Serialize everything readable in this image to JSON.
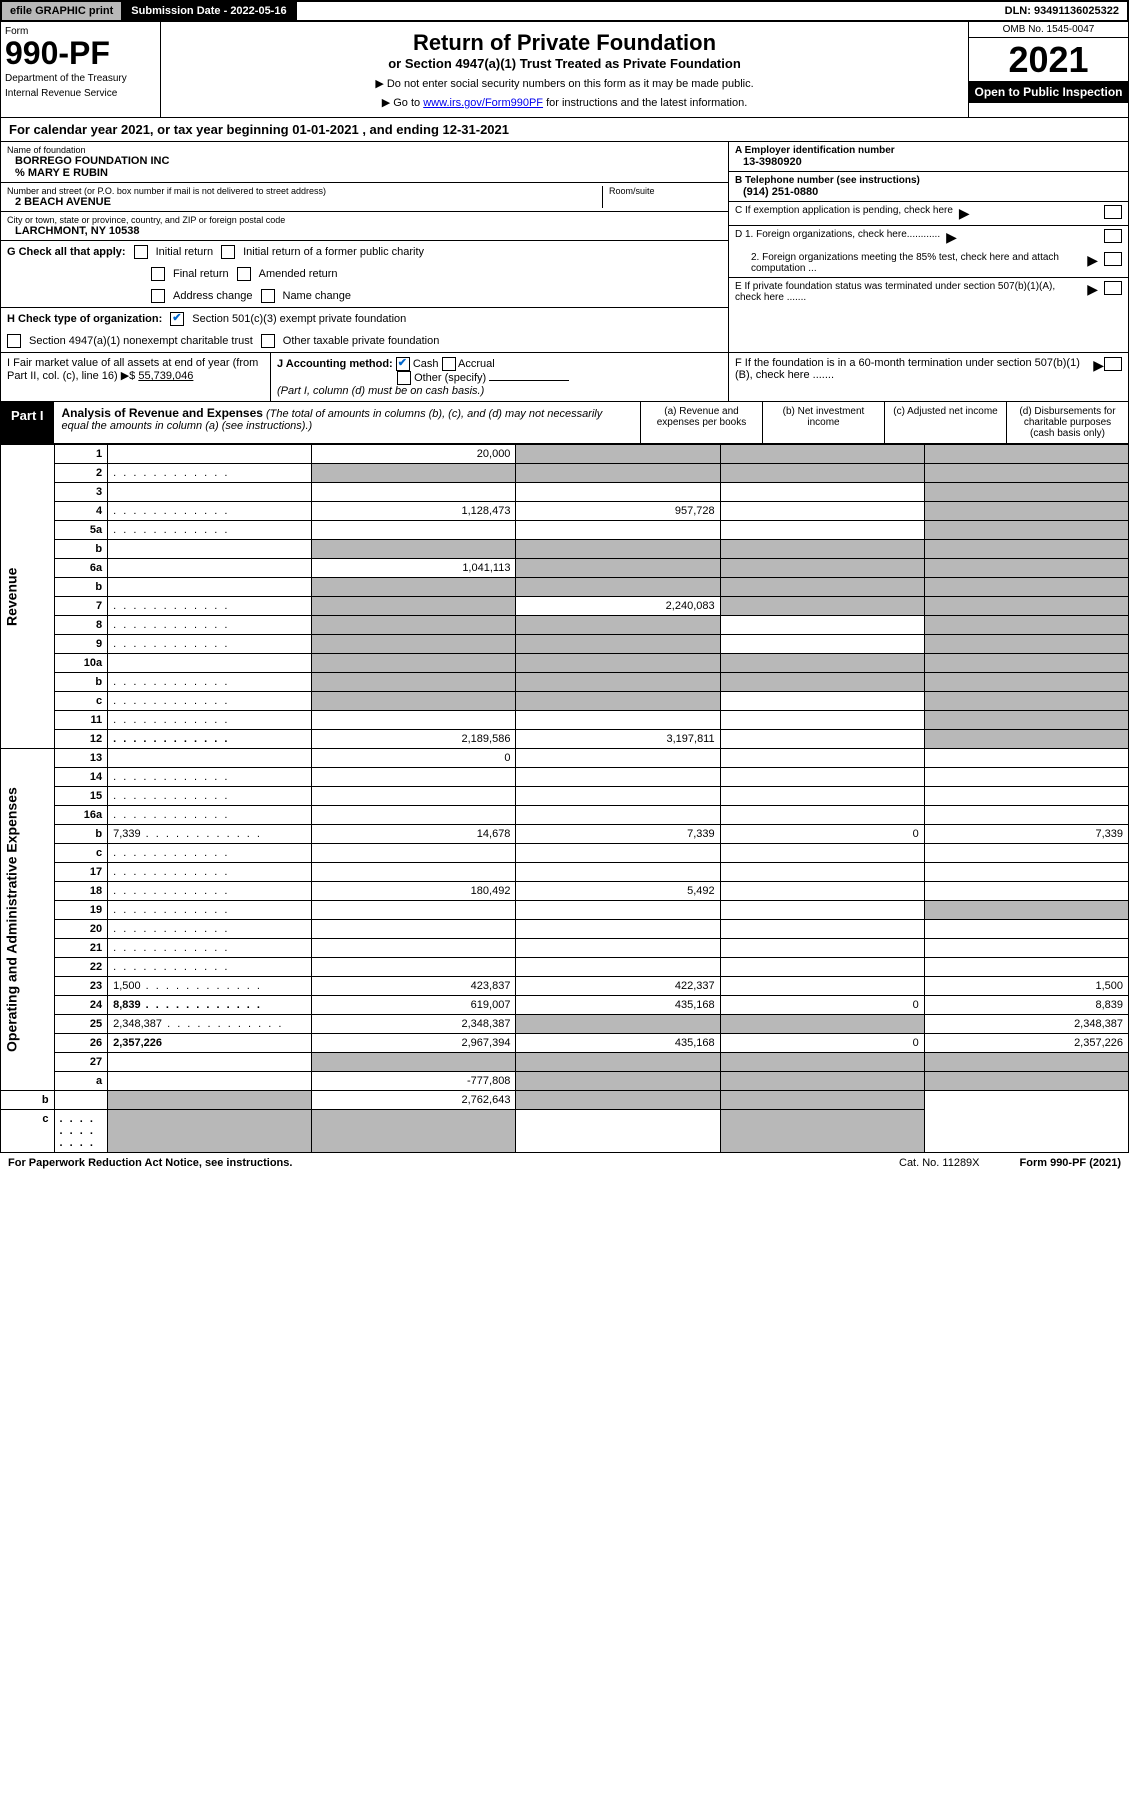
{
  "top": {
    "efile": "efile GRAPHIC print",
    "subdate_lbl": "Submission Date - 2022-05-16",
    "dln": "DLN: 93491136025322"
  },
  "header": {
    "form_lbl": "Form",
    "form_num": "990-PF",
    "dept": "Department of the Treasury",
    "irs": "Internal Revenue Service",
    "title": "Return of Private Foundation",
    "sub1": "or Section 4947(a)(1) Trust Treated as Private Foundation",
    "sub2a": "▶ Do not enter social security numbers on this form as it may be made public.",
    "sub2b": "▶ Go to ",
    "link": "www.irs.gov/Form990PF",
    "sub2c": " for instructions and the latest information.",
    "omb": "OMB No. 1545-0047",
    "year": "2021",
    "open": "Open to Public Inspection"
  },
  "calyear": "For calendar year 2021, or tax year beginning 01-01-2021                       , and ending 12-31-2021",
  "entity": {
    "name_lbl": "Name of foundation",
    "name": "BORREGO FOUNDATION INC",
    "care": "% MARY E RUBIN",
    "addr_lbl": "Number and street (or P.O. box number if mail is not delivered to street address)",
    "addr": "2 BEACH AVENUE",
    "room_lbl": "Room/suite",
    "city_lbl": "City or town, state or province, country, and ZIP or foreign postal code",
    "city": "LARCHMONT, NY  10538",
    "A_lbl": "A Employer identification number",
    "A": "13-3980920",
    "B_lbl": "B Telephone number (see instructions)",
    "B": "(914) 251-0880",
    "C": "C If exemption application is pending, check here",
    "D1": "D 1. Foreign organizations, check here............",
    "D2": "2. Foreign organizations meeting the 85% test, check here and attach computation ...",
    "E": "E  If private foundation status was terminated under section 507(b)(1)(A), check here .......",
    "F": "F  If the foundation is in a 60-month termination under section 507(b)(1)(B), check here .......",
    "G": "G Check all that apply:",
    "G_opts": [
      "Initial return",
      "Initial return of a former public charity",
      "Final return",
      "Amended return",
      "Address change",
      "Name change"
    ],
    "H": "H Check type of organization:",
    "H1": "Section 501(c)(3) exempt private foundation",
    "H2": "Section 4947(a)(1) nonexempt charitable trust",
    "H3": "Other taxable private foundation",
    "I_lbl": "I Fair market value of all assets at end of year (from Part II, col. (c), line 16) ▶$ ",
    "I_val": "55,739,046",
    "J": "J Accounting method:",
    "J1": "Cash",
    "J2": "Accrual",
    "J3": "Other (specify)",
    "J_note": "(Part I, column (d) must be on cash basis.)"
  },
  "part1": {
    "label": "Part I",
    "title": "Analysis of Revenue and Expenses",
    "note": " (The total of amounts in columns (b), (c), and (d) may not necessarily equal the amounts in column (a) (see instructions).)",
    "colA": "(a)   Revenue and expenses per books",
    "colB": "(b)   Net investment income",
    "colC": "(c)   Adjusted net income",
    "colD": "(d)   Disbursements for charitable purposes (cash basis only)"
  },
  "rows": [
    {
      "n": "1",
      "d": "",
      "a": "20,000",
      "b": "",
      "c": "",
      "sb": true,
      "sc": true,
      "sd": true
    },
    {
      "n": "2",
      "d": "",
      "a": "",
      "b": "",
      "c": "",
      "sa": true,
      "sb": true,
      "sc": true,
      "sd": true,
      "dots": true
    },
    {
      "n": "3",
      "d": "",
      "a": "",
      "b": "",
      "c": "",
      "sd": true
    },
    {
      "n": "4",
      "d": "",
      "a": "1,128,473",
      "b": "957,728",
      "c": "",
      "sd": true,
      "dots": true
    },
    {
      "n": "5a",
      "d": "",
      "a": "",
      "b": "",
      "c": "",
      "sd": true,
      "dots": true
    },
    {
      "n": "b",
      "d": "",
      "a": "",
      "b": "",
      "c": "",
      "sa": true,
      "sb": true,
      "sc": true,
      "sd": true
    },
    {
      "n": "6a",
      "d": "",
      "a": "1,041,113",
      "b": "",
      "c": "",
      "sb": true,
      "sc": true,
      "sd": true
    },
    {
      "n": "b",
      "d": "",
      "a": "",
      "b": "",
      "c": "",
      "sa": true,
      "sb": true,
      "sc": true,
      "sd": true
    },
    {
      "n": "7",
      "d": "",
      "a": "",
      "b": "2,240,083",
      "c": "",
      "sa": true,
      "sc": true,
      "sd": true,
      "dots": true
    },
    {
      "n": "8",
      "d": "",
      "a": "",
      "b": "",
      "c": "",
      "sa": true,
      "sb": true,
      "sd": true,
      "dots": true
    },
    {
      "n": "9",
      "d": "",
      "a": "",
      "b": "",
      "c": "",
      "sa": true,
      "sb": true,
      "sd": true,
      "dots": true
    },
    {
      "n": "10a",
      "d": "",
      "a": "",
      "b": "",
      "c": "",
      "sa": true,
      "sb": true,
      "sc": true,
      "sd": true
    },
    {
      "n": "b",
      "d": "",
      "a": "",
      "b": "",
      "c": "",
      "sa": true,
      "sb": true,
      "sc": true,
      "sd": true,
      "dots": true
    },
    {
      "n": "c",
      "d": "",
      "a": "",
      "b": "",
      "c": "",
      "sa": true,
      "sb": true,
      "sd": true,
      "dots": true
    },
    {
      "n": "11",
      "d": "",
      "a": "",
      "b": "",
      "c": "",
      "sd": true,
      "dots": true
    },
    {
      "n": "12",
      "d": "",
      "a": "2,189,586",
      "b": "3,197,811",
      "c": "",
      "bold": true,
      "sd": true,
      "dots": true
    },
    {
      "n": "13",
      "d": "",
      "a": "0",
      "b": "",
      "c": ""
    },
    {
      "n": "14",
      "d": "",
      "a": "",
      "b": "",
      "c": "",
      "dots": true
    },
    {
      "n": "15",
      "d": "",
      "a": "",
      "b": "",
      "c": "",
      "dots": true
    },
    {
      "n": "16a",
      "d": "",
      "a": "",
      "b": "",
      "c": "",
      "dots": true
    },
    {
      "n": "b",
      "d": "7,339",
      "a": "14,678",
      "b": "7,339",
      "c": "0",
      "dots": true
    },
    {
      "n": "c",
      "d": "",
      "a": "",
      "b": "",
      "c": "",
      "dots": true
    },
    {
      "n": "17",
      "d": "",
      "a": "",
      "b": "",
      "c": "",
      "dots": true
    },
    {
      "n": "18",
      "d": "",
      "a": "180,492",
      "b": "5,492",
      "c": "",
      "dots": true
    },
    {
      "n": "19",
      "d": "",
      "a": "",
      "b": "",
      "c": "",
      "sd": true,
      "dots": true
    },
    {
      "n": "20",
      "d": "",
      "a": "",
      "b": "",
      "c": "",
      "dots": true
    },
    {
      "n": "21",
      "d": "",
      "a": "",
      "b": "",
      "c": "",
      "dots": true
    },
    {
      "n": "22",
      "d": "",
      "a": "",
      "b": "",
      "c": "",
      "dots": true
    },
    {
      "n": "23",
      "d": "1,500",
      "a": "423,837",
      "b": "422,337",
      "c": "",
      "dots": true
    },
    {
      "n": "24",
      "d": "8,839",
      "a": "619,007",
      "b": "435,168",
      "c": "0",
      "bold": true,
      "dots": true
    },
    {
      "n": "25",
      "d": "2,348,387",
      "a": "2,348,387",
      "b": "",
      "c": "",
      "sb": true,
      "sc": true,
      "dots": true
    },
    {
      "n": "26",
      "d": "2,357,226",
      "a": "2,967,394",
      "b": "435,168",
      "c": "0",
      "bold": true
    },
    {
      "n": "27",
      "d": "",
      "a": "",
      "b": "",
      "c": "",
      "sa": true,
      "sb": true,
      "sc": true,
      "sd": true
    },
    {
      "n": "a",
      "d": "",
      "a": "-777,808",
      "b": "",
      "c": "",
      "bold": true,
      "sb": true,
      "sc": true,
      "sd": true
    },
    {
      "n": "b",
      "d": "",
      "a": "",
      "b": "2,762,643",
      "c": "",
      "bold": true,
      "sa": true,
      "sc": true,
      "sd": true
    },
    {
      "n": "c",
      "d": "",
      "a": "",
      "b": "",
      "c": "",
      "bold": true,
      "sa": true,
      "sb": true,
      "sd": true,
      "dots": true
    }
  ],
  "vlabels": {
    "rev": "Revenue",
    "exp": "Operating and Administrative Expenses"
  },
  "footer": {
    "pra": "For Paperwork Reduction Act Notice, see instructions.",
    "cat": "Cat. No. 11289X",
    "form": "Form 990-PF (2021)"
  }
}
